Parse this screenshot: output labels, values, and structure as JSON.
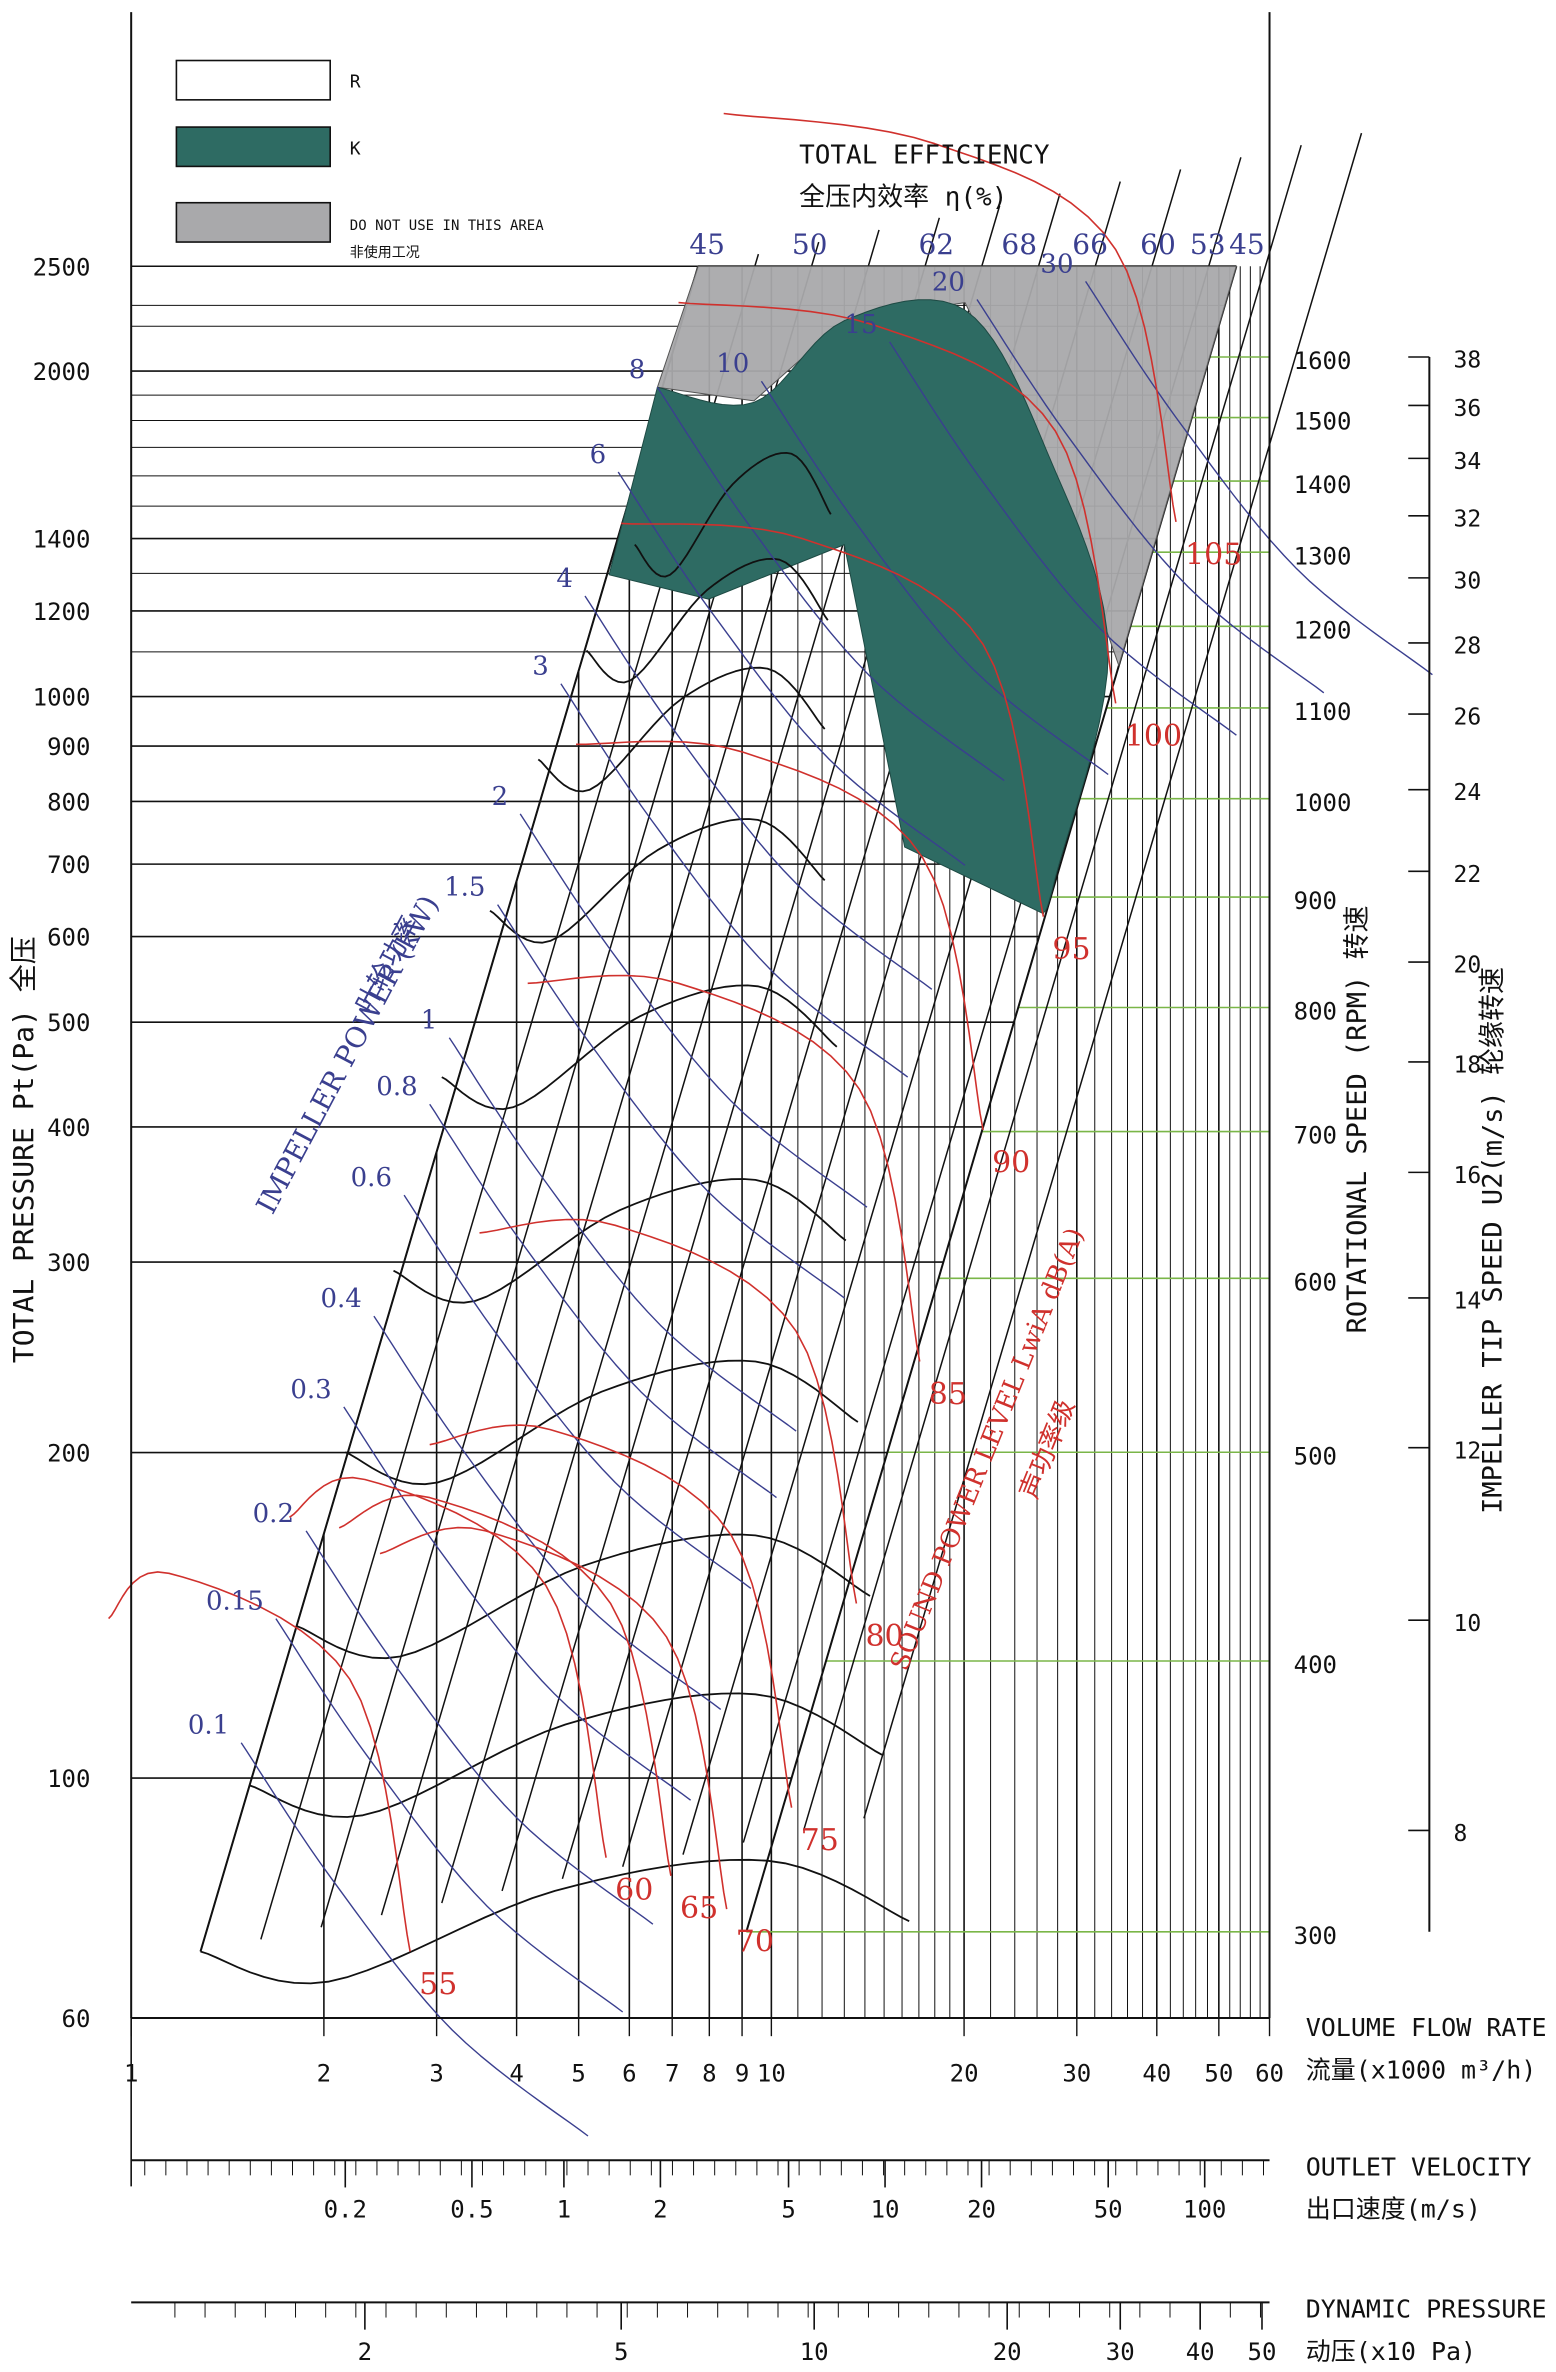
{
  "chart_data": {
    "type": "line",
    "legend": [
      {
        "label": "R",
        "color": "#ffffff"
      },
      {
        "label": "K",
        "color": "#2e6b63"
      },
      {
        "label": "DO NOT USE IN THIS AREA",
        "label_cn": "非使用工况",
        "color": "#a9a9ab"
      }
    ],
    "efficiency": {
      "title": "TOTAL EFFICIENCY",
      "title_cn": "全压内效率 η(%)",
      "ticks": [
        "45",
        "50",
        "62",
        "68",
        "66",
        "60",
        "53",
        "45"
      ]
    },
    "y_axis": {
      "label": "TOTAL PRESSURE Pt(Pa) 全压",
      "scale": "log",
      "range": [
        60,
        2500
      ],
      "ticks": [
        2500,
        2000,
        1400,
        1200,
        1000,
        900,
        800,
        700,
        600,
        500,
        400,
        300,
        200,
        100,
        60
      ]
    },
    "x_axis": {
      "label": "VOLUME FLOW RATE",
      "label_cn": "流量(x1000 m³/h)",
      "scale": "log",
      "range": [
        1,
        60
      ],
      "ticks": [
        1,
        2,
        3,
        4,
        5,
        6,
        7,
        8,
        9,
        10,
        20,
        30,
        40,
        50,
        60
      ]
    },
    "outlet_velocity": {
      "label": "OUTLET VELOCITY",
      "label_cn": "出口速度(m/s)",
      "ticks": [
        "0.2",
        "0.5",
        "1",
        "2",
        "5",
        "10",
        "20",
        "50",
        "100"
      ]
    },
    "dynamic_pressure": {
      "label": "DYNAMIC PRESSURE",
      "label_cn": "动压(x10 Pa)",
      "ticks": [
        "2",
        "5",
        "10",
        "20",
        "30",
        "40",
        "50"
      ]
    },
    "rotational_speed": {
      "label": "ROTATIONAL SPEED (RPM) 转速",
      "ticks": [
        1600,
        1500,
        1400,
        1300,
        1200,
        1100,
        1000,
        900,
        800,
        700,
        600,
        500,
        400,
        300
      ]
    },
    "tip_speed": {
      "label": "IMPELLER TIP SPEED U2(m/s) 轮缘转速",
      "ticks": [
        38,
        36,
        34,
        32,
        30,
        28,
        26,
        24,
        22,
        20,
        18,
        16,
        14,
        12,
        10,
        8
      ]
    },
    "impeller_power": {
      "label": "IMPELLER POWER (kW)",
      "label_cn": "叶轮功率",
      "values": [
        "8",
        "10",
        "15",
        "20",
        "30",
        "6",
        "4",
        "3",
        "2",
        "1.5",
        "1",
        "0.8",
        "0.6",
        "0.4",
        "0.3",
        "0.2",
        "0.15",
        "0.1"
      ]
    },
    "sound_power": {
      "label": "SOUND POWER LEVEL LwiA dB(A)",
      "label_cn": "声功率级",
      "values": [
        105,
        100,
        95,
        90,
        85,
        80,
        75,
        70,
        65,
        60,
        55
      ]
    }
  }
}
